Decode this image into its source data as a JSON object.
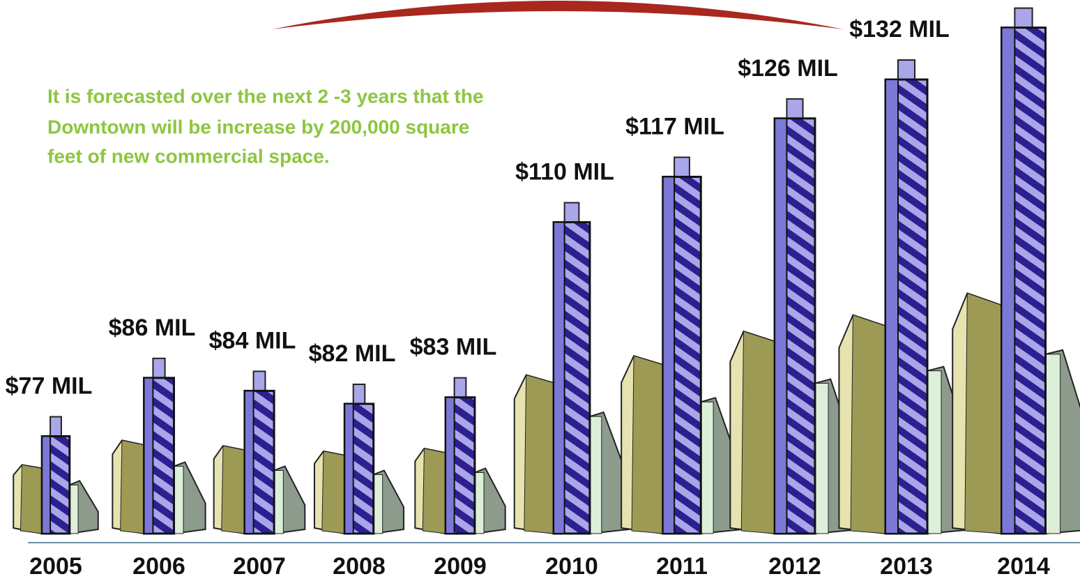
{
  "chart_data": {
    "type": "pictograph",
    "annotation": [
      "It is forecasted over the next 2 -3 years that the",
      "Downtown will be increase by 200,000 square",
      "feet of new commercial space."
    ],
    "categories": [
      "2005",
      "2006",
      "2007",
      "2008",
      "2009",
      "2010",
      "2011",
      "2012",
      "2013",
      "2014"
    ],
    "values": [
      77,
      86,
      84,
      82,
      83,
      110,
      117,
      126,
      132,
      140
    ],
    "value_labels": [
      "$77 MIL",
      "$86 MIL",
      "$84 MIL",
      "$82 MIL",
      "$83 MIL",
      "$110 MIL",
      "$117 MIL",
      "$126 MIL",
      "$132 MIL",
      null
    ],
    "color": "#7b78d8"
  }
}
